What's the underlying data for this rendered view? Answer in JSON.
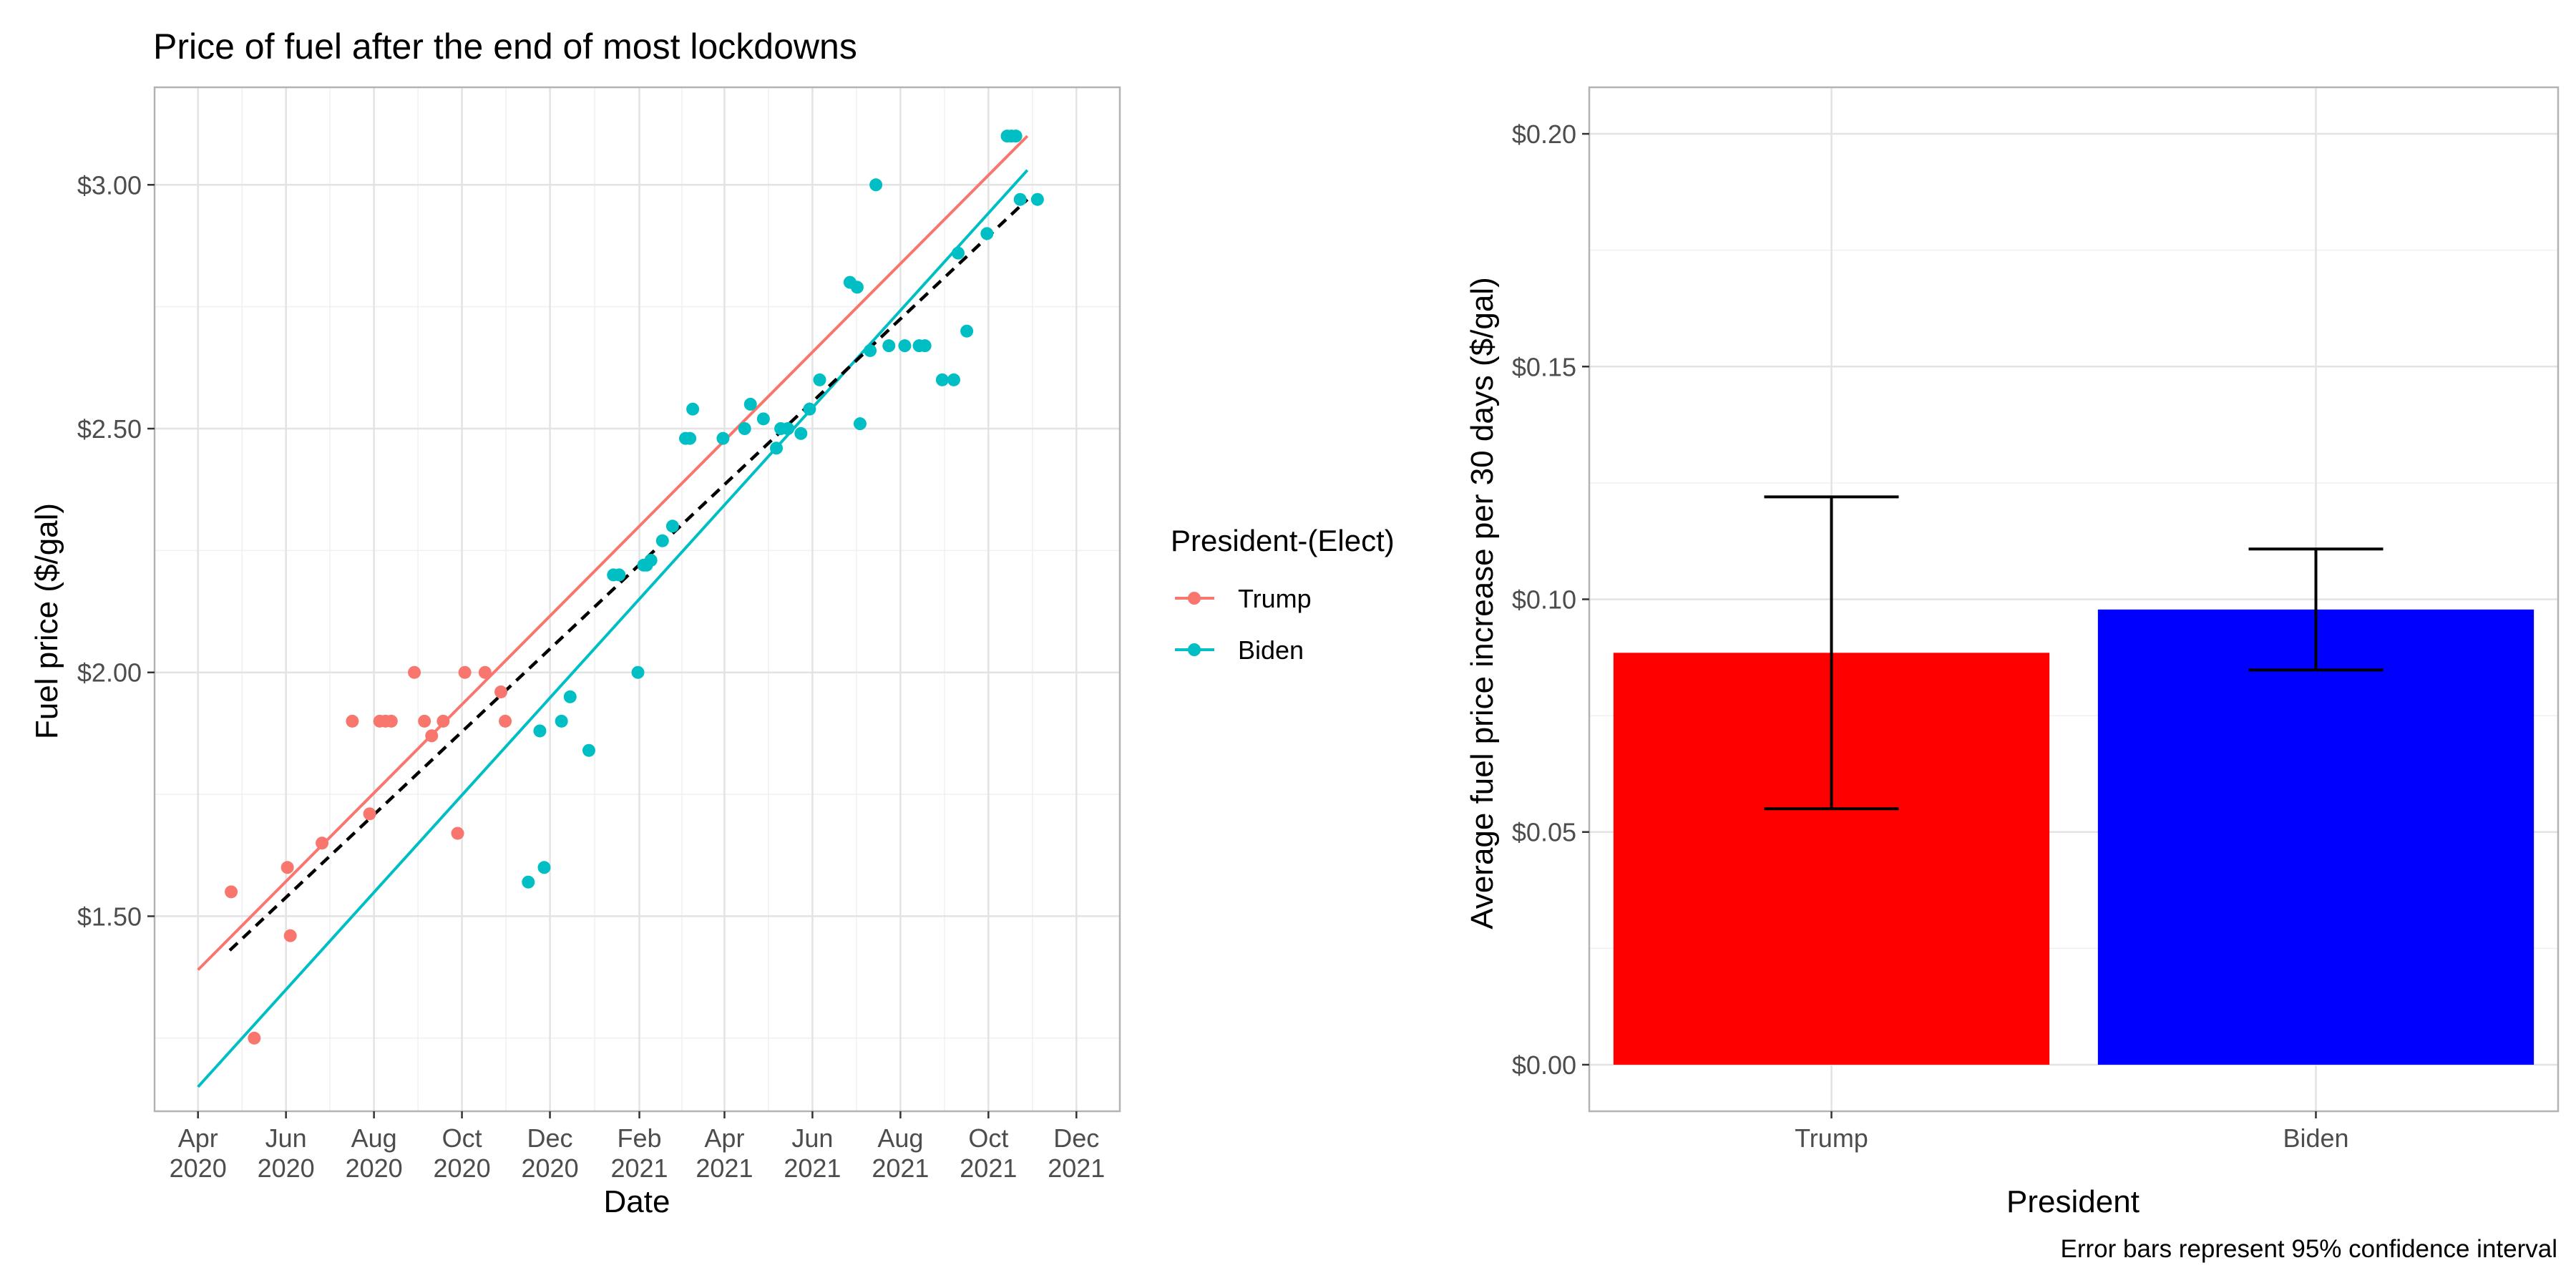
{
  "chart_data": [
    {
      "type": "scatter",
      "title": "Price of fuel after the end of most lockdowns",
      "xlabel": "Date",
      "ylabel": "Fuel price ($/gal)",
      "xlim": [
        "2020-04-01",
        "2021-12-01"
      ],
      "ylim": [
        1.1,
        3.2
      ],
      "x_ticks": [
        {
          "date": "2020-04-01",
          "line1": "Apr",
          "line2": "2020"
        },
        {
          "date": "2020-06-01",
          "line1": "Jun",
          "line2": "2020"
        },
        {
          "date": "2020-08-01",
          "line1": "Aug",
          "line2": "2020"
        },
        {
          "date": "2020-10-01",
          "line1": "Oct",
          "line2": "2020"
        },
        {
          "date": "2020-12-01",
          "line1": "Dec",
          "line2": "2020"
        },
        {
          "date": "2021-02-01",
          "line1": "Feb",
          "line2": "2021"
        },
        {
          "date": "2021-04-01",
          "line1": "Apr",
          "line2": "2021"
        },
        {
          "date": "2021-06-01",
          "line1": "Jun",
          "line2": "2021"
        },
        {
          "date": "2021-08-01",
          "line1": "Aug",
          "line2": "2021"
        },
        {
          "date": "2021-10-01",
          "line1": "Oct",
          "line2": "2021"
        },
        {
          "date": "2021-12-01",
          "line1": "Dec",
          "line2": "2021"
        }
      ],
      "y_ticks": [
        {
          "value": 1.5,
          "label": "$1.50"
        },
        {
          "value": 2.0,
          "label": "$2.00"
        },
        {
          "value": 2.5,
          "label": "$2.50"
        },
        {
          "value": 3.0,
          "label": "$3.00"
        }
      ],
      "grid": true,
      "legend": {
        "title": "President-(Elect)",
        "placement": "right"
      },
      "series": [
        {
          "name": "Trump",
          "color": "#F8766D",
          "points": [
            {
              "x": "2020-04-24",
              "y": 1.55
            },
            {
              "x": "2020-05-10",
              "y": 1.25
            },
            {
              "x": "2020-06-02",
              "y": 1.6
            },
            {
              "x": "2020-06-04",
              "y": 1.46
            },
            {
              "x": "2020-06-26",
              "y": 1.65
            },
            {
              "x": "2020-07-17",
              "y": 1.9
            },
            {
              "x": "2020-07-29",
              "y": 1.71
            },
            {
              "x": "2020-08-05",
              "y": 1.9
            },
            {
              "x": "2020-08-09",
              "y": 1.9
            },
            {
              "x": "2020-08-13",
              "y": 1.9
            },
            {
              "x": "2020-08-29",
              "y": 2.0
            },
            {
              "x": "2020-09-05",
              "y": 1.9
            },
            {
              "x": "2020-09-10",
              "y": 1.87
            },
            {
              "x": "2020-09-18",
              "y": 1.9
            },
            {
              "x": "2020-09-28",
              "y": 1.67
            },
            {
              "x": "2020-10-03",
              "y": 2.0
            },
            {
              "x": "2020-10-17",
              "y": 2.0
            },
            {
              "x": "2020-10-28",
              "y": 1.96
            },
            {
              "x": "2020-10-31",
              "y": 1.9
            }
          ],
          "fit": [
            {
              "x": "2020-04-01",
              "y": 1.39
            },
            {
              "x": "2021-10-28",
              "y": 3.1
            }
          ]
        },
        {
          "name": "Biden",
          "color": "#00BFC4",
          "points": [
            {
              "x": "2020-11-16",
              "y": 1.57
            },
            {
              "x": "2020-11-24",
              "y": 1.88
            },
            {
              "x": "2020-11-27",
              "y": 1.6
            },
            {
              "x": "2020-12-09",
              "y": 1.9
            },
            {
              "x": "2020-12-15",
              "y": 1.95
            },
            {
              "x": "2020-12-28",
              "y": 1.84
            },
            {
              "x": "2021-01-14",
              "y": 2.2
            },
            {
              "x": "2021-01-18",
              "y": 2.2
            },
            {
              "x": "2021-01-31",
              "y": 2.0
            },
            {
              "x": "2021-02-04",
              "y": 2.22
            },
            {
              "x": "2021-02-06",
              "y": 2.22
            },
            {
              "x": "2021-02-09",
              "y": 2.23
            },
            {
              "x": "2021-02-17",
              "y": 2.27
            },
            {
              "x": "2021-02-24",
              "y": 2.3
            },
            {
              "x": "2021-03-05",
              "y": 2.48
            },
            {
              "x": "2021-03-08",
              "y": 2.48
            },
            {
              "x": "2021-03-10",
              "y": 2.54
            },
            {
              "x": "2021-03-31",
              "y": 2.48
            },
            {
              "x": "2021-04-15",
              "y": 2.5
            },
            {
              "x": "2021-04-19",
              "y": 2.55
            },
            {
              "x": "2021-04-28",
              "y": 2.52
            },
            {
              "x": "2021-05-07",
              "y": 2.46
            },
            {
              "x": "2021-05-10",
              "y": 2.5
            },
            {
              "x": "2021-05-15",
              "y": 2.5
            },
            {
              "x": "2021-05-24",
              "y": 2.49
            },
            {
              "x": "2021-05-30",
              "y": 2.54
            },
            {
              "x": "2021-06-06",
              "y": 2.6
            },
            {
              "x": "2021-06-27",
              "y": 2.8
            },
            {
              "x": "2021-07-02",
              "y": 2.79
            },
            {
              "x": "2021-07-04",
              "y": 2.51
            },
            {
              "x": "2021-07-11",
              "y": 2.66
            },
            {
              "x": "2021-07-15",
              "y": 3.0
            },
            {
              "x": "2021-07-24",
              "y": 2.67
            },
            {
              "x": "2021-08-04",
              "y": 2.67
            },
            {
              "x": "2021-08-14",
              "y": 2.67
            },
            {
              "x": "2021-08-18",
              "y": 2.67
            },
            {
              "x": "2021-08-30",
              "y": 2.6
            },
            {
              "x": "2021-09-07",
              "y": 2.6
            },
            {
              "x": "2021-09-10",
              "y": 2.86
            },
            {
              "x": "2021-09-16",
              "y": 2.7
            },
            {
              "x": "2021-09-30",
              "y": 2.9
            },
            {
              "x": "2021-10-14",
              "y": 3.1
            },
            {
              "x": "2021-10-17",
              "y": 3.1
            },
            {
              "x": "2021-10-20",
              "y": 3.1
            },
            {
              "x": "2021-10-23",
              "y": 2.97
            },
            {
              "x": "2021-11-04",
              "y": 2.97
            }
          ],
          "fit": [
            {
              "x": "2020-04-01",
              "y": 1.15
            },
            {
              "x": "2021-10-28",
              "y": 3.03
            }
          ]
        }
      ],
      "overall_fit": {
        "style": "dashed",
        "color": "#000000",
        "points": [
          {
            "x": "2020-04-23",
            "y": 1.43
          },
          {
            "x": "2021-10-28",
            "y": 2.97
          }
        ]
      }
    },
    {
      "type": "bar",
      "xlabel": "President",
      "ylabel": "Average fuel price increase per 30 days ($/gal)",
      "ylim": [
        -0.01,
        0.21
      ],
      "y_ticks": [
        {
          "value": 0.0,
          "label": "$0.00"
        },
        {
          "value": 0.05,
          "label": "$0.05"
        },
        {
          "value": 0.1,
          "label": "$0.10"
        },
        {
          "value": 0.15,
          "label": "$0.15"
        },
        {
          "value": 0.2,
          "label": "$0.20"
        }
      ],
      "grid": true,
      "categories": [
        "Trump",
        "Biden"
      ],
      "values": [
        0.0885,
        0.0978
      ],
      "error_bars": [
        {
          "low": 0.055,
          "high": 0.122
        },
        {
          "low": 0.0848,
          "high": 0.1108
        }
      ],
      "colors": [
        "#FF0000",
        "#0000FF"
      ],
      "caption": "Error bars represent 95% confidence interval"
    }
  ]
}
